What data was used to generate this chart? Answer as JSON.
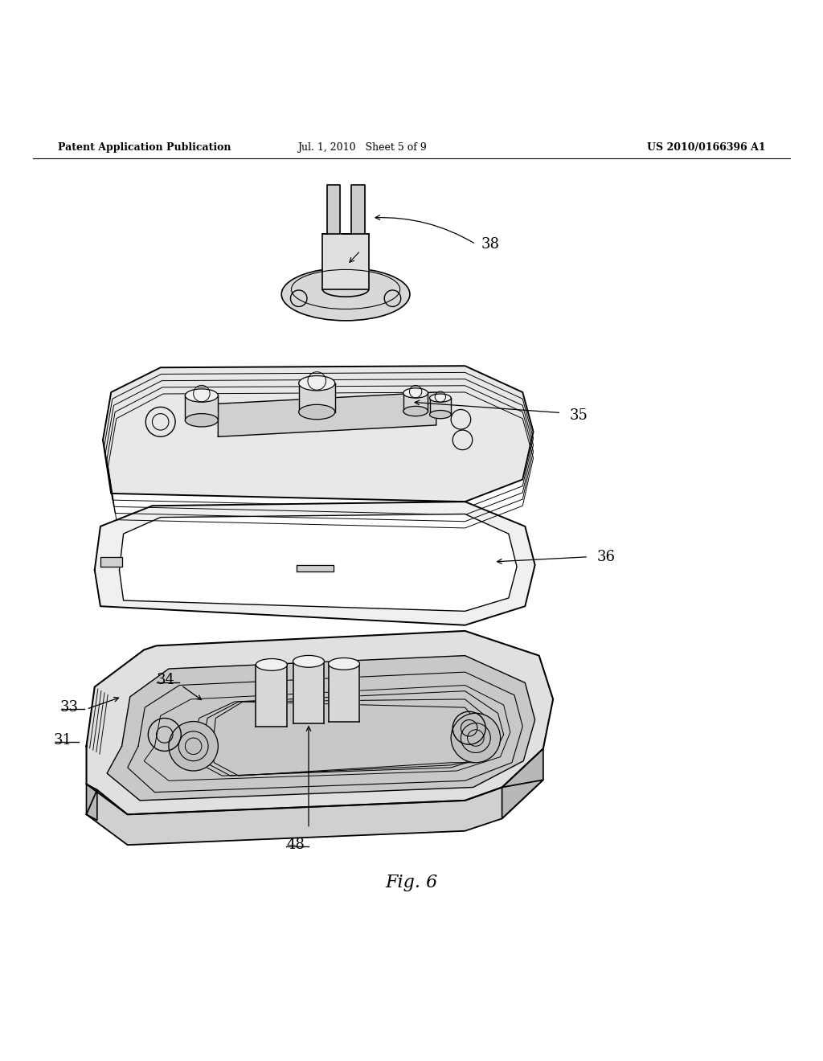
{
  "title": "Fig. 6",
  "header_left": "Patent Application Publication",
  "header_center": "Jul. 1, 2010   Sheet 5 of 9",
  "header_right": "US 2010/0166396 A1",
  "background_color": "#ffffff",
  "line_color": "#000000",
  "label_color": "#000000",
  "header_fontsize": 9,
  "title_fontsize": 16,
  "label_fontsize": 13
}
